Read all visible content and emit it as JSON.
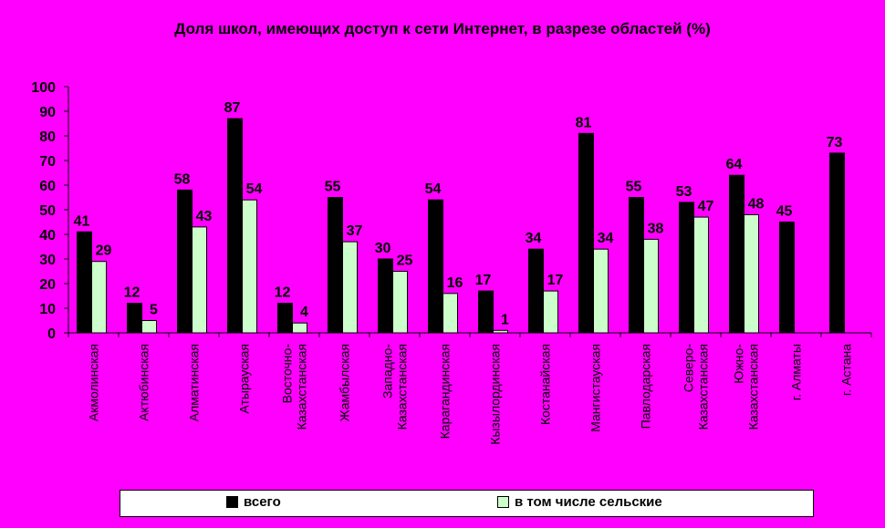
{
  "colors": {
    "background": "#ff00ff",
    "series_all": "#000000",
    "series_rural": "#ccffcc"
  },
  "chart_data": {
    "type": "bar",
    "title": "Доля школ, имеющих доступ к сети Интернет, в разрезе областей (%)",
    "xlabel": "",
    "ylabel": "",
    "ylim": [
      0,
      100
    ],
    "yticks": [
      0,
      10,
      20,
      30,
      40,
      50,
      60,
      70,
      80,
      90,
      100
    ],
    "grid": false,
    "legend_position": "bottom",
    "categories": [
      [
        "Акмолинская"
      ],
      [
        "Актюбинская"
      ],
      [
        "Алматинская"
      ],
      [
        "Атырауская"
      ],
      [
        "Восточно-",
        "Казахстанская"
      ],
      [
        "Жамбылская"
      ],
      [
        "Западно-",
        "Казахстанская"
      ],
      [
        "Карагандинская"
      ],
      [
        "Кызылординская"
      ],
      [
        "Костанайская"
      ],
      [
        "Мангистауская"
      ],
      [
        "Павлодарская"
      ],
      [
        "Северо-",
        "Казахстанская"
      ],
      [
        "Южно-",
        "Казахстанская"
      ],
      [
        "г. Алматы"
      ],
      [
        "г. Астана"
      ]
    ],
    "series": [
      {
        "name": "всего",
        "color": "#000000",
        "values": [
          41,
          12,
          58,
          87,
          12,
          55,
          30,
          54,
          17,
          34,
          81,
          55,
          53,
          64,
          45,
          73
        ]
      },
      {
        "name": "в том числе сельские",
        "color": "#ccffcc",
        "values": [
          29,
          5,
          43,
          54,
          4,
          37,
          25,
          16,
          1,
          17,
          34,
          38,
          47,
          48,
          null,
          null
        ]
      }
    ]
  }
}
